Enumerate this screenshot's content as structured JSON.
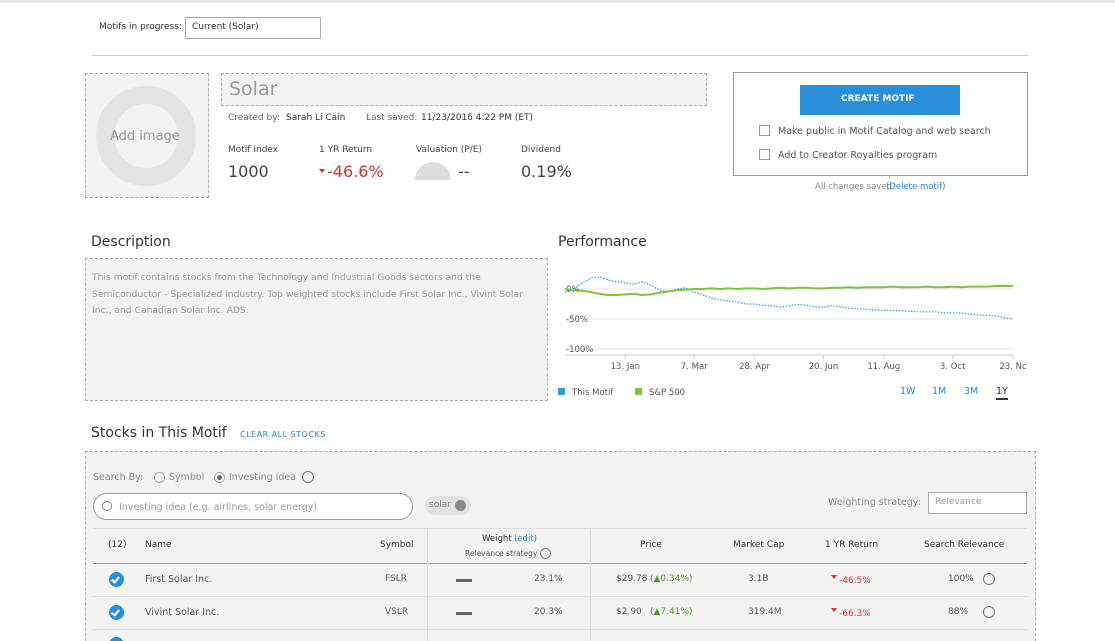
{
  "header": {
    "motifs_label": "Motifs in progress:",
    "motifs_select": "Current (Solar)"
  },
  "motif": {
    "add_image": "Add image",
    "title": "Solar",
    "created_by_label": "Created by:",
    "creator": "Sarah Li Cain",
    "last_saved_label": "Last saved:",
    "last_saved": "11/23/2016 4:22 PM (ET)",
    "stats": [
      {
        "label": "Motif Index",
        "value": "1000"
      },
      {
        "label": "1 YR Return",
        "value": "-46.6%"
      },
      {
        "label": "Valuation (P/E)",
        "value": "--"
      },
      {
        "label": "Dividend",
        "value": "0.19%"
      }
    ]
  },
  "actions": {
    "create": "CREATE MOTIF",
    "options": [
      "Make public in Motif Catalog and web search",
      "Add to Creator Royalties program"
    ],
    "saved_note": "All changes saved",
    "delete": "(Delete motif)"
  },
  "description": {
    "heading": "Description",
    "text": "This motif contains stocks from the Technology and Industrial Goods sectors and the Semiconductor - Specialized industry. Top weighted stocks include First Solar Inc., Vivint Solar Inc., and Canadian Solar Inc. ADS."
  },
  "performance": {
    "heading": "Performance",
    "ranges": [
      "1W",
      "1M",
      "3M",
      "1Y"
    ],
    "active_range": "1Y",
    "chart_data": {
      "type": "line",
      "categories": [
        null,
        null,
        null,
        null,
        null,
        null,
        null,
        "13. Jan",
        null,
        null,
        null,
        null,
        null,
        null,
        null,
        "7. Mar",
        null,
        null,
        null,
        null,
        null,
        null,
        "28. Apr",
        null,
        null,
        null,
        null,
        null,
        null,
        null,
        "20. Jun",
        null,
        null,
        null,
        null,
        null,
        null,
        "11. Aug",
        null,
        null,
        null,
        null,
        null,
        null,
        null,
        "3. Oct",
        null,
        null,
        null,
        null,
        null,
        null,
        "23. Nc"
      ],
      "series": [
        {
          "name": "This Motif",
          "color": "#2a9fd6",
          "values": [
            -5,
            0,
            10,
            18,
            20,
            15,
            12,
            10,
            8,
            12,
            6,
            -2,
            -5,
            0,
            2,
            -5,
            -10,
            -15,
            -18,
            -20,
            -22,
            -25,
            -25,
            -27,
            -28,
            -30,
            -28,
            -26,
            -27,
            -30,
            -30,
            -28,
            -30,
            -32,
            -33,
            -34,
            -35,
            -35,
            -36,
            -36,
            -37,
            -38,
            -38,
            -38,
            -40,
            -40,
            -40,
            -42,
            -43,
            -44,
            -45,
            -48,
            -50
          ]
        },
        {
          "name": "S&P 500",
          "color": "#7dc242",
          "values": [
            0,
            -2,
            -3,
            -5,
            -8,
            -10,
            -10,
            -9,
            -8,
            -10,
            -9,
            -6,
            -4,
            -2,
            -1,
            0,
            0,
            1,
            0,
            1,
            0,
            1,
            1,
            0,
            1,
            2,
            1,
            2,
            2,
            1,
            1,
            2,
            2,
            3,
            2,
            3,
            3,
            3,
            4,
            3,
            3,
            3,
            4,
            3,
            3,
            4,
            3,
            4,
            4,
            4,
            5,
            5,
            5
          ]
        }
      ],
      "ylim": [
        -110,
        40
      ],
      "yticks": [
        {
          "value": 0,
          "label": "0%"
        },
        {
          "value": -50,
          "label": "-50%"
        },
        {
          "value": -100,
          "label": "-100%"
        }
      ]
    }
  },
  "stocks": {
    "heading": "Stocks in This Motif",
    "clear": "CLEAR ALL STOCKS",
    "search_by": "Search By:",
    "search_options": [
      "Symbol",
      "Investing idea"
    ],
    "search_placeholder": "Investing idea (e.g. airlines, solar energy)",
    "tag": "solar",
    "weighting_label": "Weighting strategy:",
    "weighting_value": "Relevance",
    "columns": {
      "count": "(12)",
      "name": "Name",
      "symbol": "Symbol",
      "weight": "Weight",
      "weight_edit": "(edit)",
      "weight_sub": "Relevance strategy",
      "price": "Price",
      "market_cap": "Market Cap",
      "return": "1 YR Return",
      "relevance": "Search Relevance"
    },
    "rows": [
      {
        "name": "First Solar Inc.",
        "symbol": "FSLR",
        "weight": "23.1%",
        "price": "$29.78",
        "change": "(▲0.34%)",
        "market_cap": "3.1B",
        "return": "-46.5%",
        "relevance": "100%"
      },
      {
        "name": "Vivint Solar Inc.",
        "symbol": "VSLR",
        "weight": "20.3%",
        "price": "$2.90",
        "change": "(▲7.41%)",
        "market_cap": "319.4M",
        "return": "-66.3%",
        "relevance": "88%"
      }
    ]
  }
}
